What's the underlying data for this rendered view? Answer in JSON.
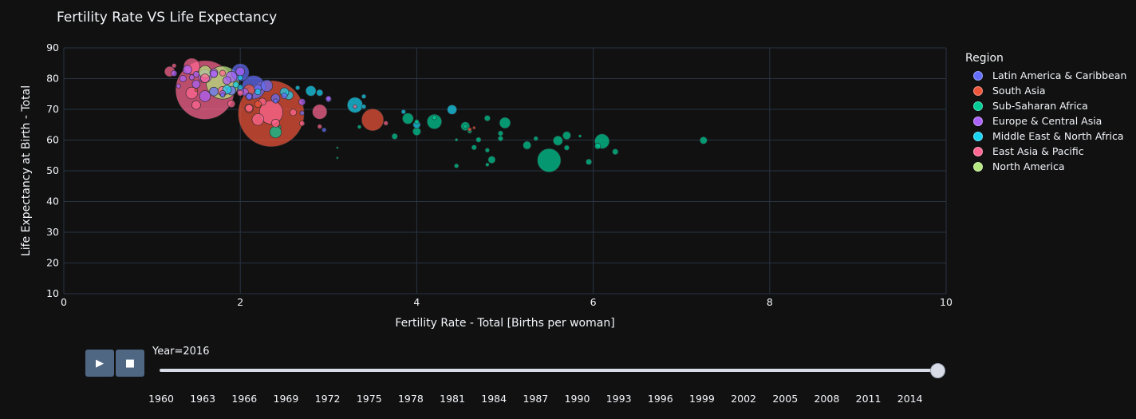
{
  "chart_data": {
    "type": "scatter",
    "title": "Fertility Rate VS Life Expectancy",
    "xlabel": "Fertility Rate - Total [Births per woman]",
    "ylabel": "Life Expectancy at Birth - Total",
    "xlim": [
      0,
      10
    ],
    "ylim": [
      10,
      90
    ],
    "xticks": [
      0,
      2,
      4,
      6,
      8,
      10
    ],
    "yticks": [
      10,
      20,
      30,
      40,
      50,
      60,
      70,
      80,
      90
    ],
    "grid": true,
    "legend_title": "Region",
    "legend_position": "right",
    "series": [
      {
        "name": "Latin America & Caribbean",
        "color": "#636efa",
        "points": [
          [
            2.15,
            77.2,
            3.2
          ],
          [
            2.0,
            82.0,
            2.4
          ],
          [
            1.9,
            76.1,
            1.2
          ],
          [
            1.7,
            75.8,
            1.2
          ],
          [
            2.95,
            63.3,
            0.6
          ],
          [
            3.0,
            73.3,
            0.8
          ],
          [
            2.4,
            73.6,
            1.2
          ],
          [
            2.2,
            76.9,
            1.0
          ],
          [
            2.5,
            74.4,
            0.8
          ],
          [
            2.7,
            68.8,
            0.6
          ],
          [
            2.1,
            74.2,
            0.8
          ],
          [
            2.3,
            77.7,
            1.6
          ],
          [
            2.4,
            72.7,
            0.6
          ],
          [
            1.8,
            74.6,
            0.6
          ]
        ]
      },
      {
        "name": "South Asia",
        "color": "#ef553b",
        "points": [
          [
            2.35,
            68.6,
            9.0
          ],
          [
            3.5,
            66.6,
            3.0
          ],
          [
            2.1,
            70.3,
            1.2
          ],
          [
            2.2,
            71.7,
            0.9
          ],
          [
            2.1,
            76.3,
            1.5
          ],
          [
            1.5,
            76.3,
            0.4
          ],
          [
            4.6,
            63.5,
            0.5
          ],
          [
            4.65,
            64.0,
            0.4
          ]
        ]
      },
      {
        "name": "Sub-Saharan Africa",
        "color": "#00cc96",
        "points": [
          [
            5.5,
            53.4,
            3.2
          ],
          [
            4.2,
            66.0,
            2.0
          ],
          [
            5.0,
            65.6,
            1.5
          ],
          [
            6.1,
            59.6,
            2.0
          ],
          [
            3.9,
            67.0,
            1.5
          ],
          [
            4.55,
            64.5,
            1.2
          ],
          [
            4.8,
            67.1,
            0.8
          ],
          [
            5.7,
            61.5,
            1.1
          ],
          [
            5.6,
            59.8,
            1.3
          ],
          [
            4.0,
            62.8,
            1.1
          ],
          [
            3.75,
            61.2,
            0.8
          ],
          [
            5.25,
            58.3,
            1.1
          ],
          [
            4.65,
            57.6,
            0.7
          ],
          [
            4.7,
            60.1,
            0.7
          ],
          [
            4.95,
            60.5,
            0.7
          ],
          [
            4.95,
            62.2,
            0.7
          ],
          [
            4.85,
            53.6,
            1.0
          ],
          [
            5.7,
            57.5,
            0.7
          ],
          [
            6.05,
            58.0,
            0.8
          ],
          [
            6.25,
            56.2,
            0.8
          ],
          [
            7.25,
            59.9,
            1.0
          ],
          [
            5.95,
            52.9,
            0.8
          ],
          [
            4.45,
            51.6,
            0.6
          ],
          [
            4.8,
            56.7,
            0.6
          ],
          [
            4.45,
            60.1,
            0.4
          ],
          [
            4.0,
            66.0,
            0.6
          ],
          [
            3.1,
            57.5,
            0.3
          ],
          [
            3.1,
            54.2,
            0.3
          ],
          [
            5.35,
            60.5,
            0.6
          ],
          [
            4.2,
            67.3,
            0.6
          ],
          [
            2.45,
            64.3,
            0.3
          ],
          [
            3.35,
            64.3,
            0.5
          ],
          [
            2.4,
            62.6,
            1.6
          ],
          [
            4.6,
            62.9,
            0.6
          ],
          [
            4.8,
            52.0,
            0.5
          ],
          [
            5.85,
            61.3,
            0.4
          ],
          [
            4.55,
            64.4,
            0.5
          ]
        ]
      },
      {
        "name": "Europe & Central Asia",
        "color": "#ab63fa",
        "points": [
          [
            1.6,
            80.8,
            1.8
          ],
          [
            1.9,
            80.6,
            1.5
          ],
          [
            2.0,
            82.3,
            1.2
          ],
          [
            1.5,
            78.2,
            1.1
          ],
          [
            1.35,
            80.0,
            0.9
          ],
          [
            1.4,
            82.9,
            1.2
          ],
          [
            1.7,
            81.9,
            1.1
          ],
          [
            1.6,
            74.3,
            1.5
          ],
          [
            1.85,
            79.4,
            1.1
          ],
          [
            2.0,
            76.0,
            0.9
          ],
          [
            1.5,
            81.4,
            0.8
          ],
          [
            2.05,
            75.6,
            1.0
          ],
          [
            2.1,
            74.2,
            1.0
          ],
          [
            1.3,
            77.6,
            0.6
          ],
          [
            2.7,
            72.4,
            0.9
          ],
          [
            3.0,
            73.5,
            0.7
          ],
          [
            1.7,
            81.5,
            1.0
          ],
          [
            1.8,
            75.2,
            0.8
          ],
          [
            1.25,
            81.7,
            0.8
          ],
          [
            1.45,
            80.4,
            0.7
          ]
        ]
      },
      {
        "name": "Middle East & North Africa",
        "color": "#19d3f3",
        "points": [
          [
            3.3,
            71.4,
            2.1
          ],
          [
            2.8,
            76.0,
            1.4
          ],
          [
            2.55,
            74.6,
            1.2
          ],
          [
            2.5,
            75.6,
            1.2
          ],
          [
            4.4,
            69.9,
            1.3
          ],
          [
            3.4,
            74.2,
            0.6
          ],
          [
            1.85,
            76.4,
            1.2
          ],
          [
            2.9,
            75.4,
            0.9
          ],
          [
            2.0,
            77.2,
            0.7
          ],
          [
            2.2,
            75.7,
            0.8
          ],
          [
            3.4,
            70.9,
            0.6
          ],
          [
            2.0,
            80.3,
            0.7
          ],
          [
            1.95,
            78.0,
            0.8
          ],
          [
            2.65,
            77.0,
            0.6
          ],
          [
            4.0,
            65.0,
            1.0
          ],
          [
            3.85,
            69.2,
            0.6
          ]
        ]
      },
      {
        "name": "East Asia & Pacific",
        "color": "#ff6692",
        "points": [
          [
            1.6,
            76.3,
            8.0
          ],
          [
            2.35,
            69.0,
            3.2
          ],
          [
            1.45,
            84.0,
            2.2
          ],
          [
            2.9,
            69.2,
            2.0
          ],
          [
            1.2,
            82.3,
            1.4
          ],
          [
            2.2,
            66.7,
            1.6
          ],
          [
            1.45,
            75.3,
            1.6
          ],
          [
            2.4,
            65.5,
            1.1
          ],
          [
            2.1,
            70.4,
            1.0
          ],
          [
            1.8,
            75.9,
            1.3
          ],
          [
            1.5,
            71.4,
            1.2
          ],
          [
            2.6,
            69.0,
            0.9
          ],
          [
            1.9,
            71.8,
            1.0
          ],
          [
            2.7,
            65.4,
            0.7
          ],
          [
            3.65,
            65.5,
            0.6
          ],
          [
            2.9,
            64.4,
            0.6
          ],
          [
            1.25,
            84.2,
            0.6
          ],
          [
            1.6,
            80.1,
            1.2
          ],
          [
            2.25,
            72.5,
            1.0
          ],
          [
            3.3,
            70.9,
            0.5
          ],
          [
            2.0,
            75.3,
            0.8
          ],
          [
            1.8,
            81.8,
            0.8
          ]
        ]
      },
      {
        "name": "North America",
        "color": "#b6e880",
        "points": [
          [
            1.8,
            78.7,
            4.5
          ],
          [
            1.6,
            82.2,
            1.7
          ]
        ]
      }
    ],
    "note": "each point is [fertility_rate, life_expectancy, relative_marker_size]"
  },
  "slider": {
    "label": "Year=2016",
    "ticks": [
      "1960",
      "1963",
      "1966",
      "1969",
      "1972",
      "1975",
      "1978",
      "1981",
      "1984",
      "1987",
      "1990",
      "1993",
      "1996",
      "1999",
      "2002",
      "2005",
      "2008",
      "2011",
      "2014"
    ]
  },
  "controls": {
    "play_icon": "play-icon",
    "stop_icon": "stop-icon"
  }
}
